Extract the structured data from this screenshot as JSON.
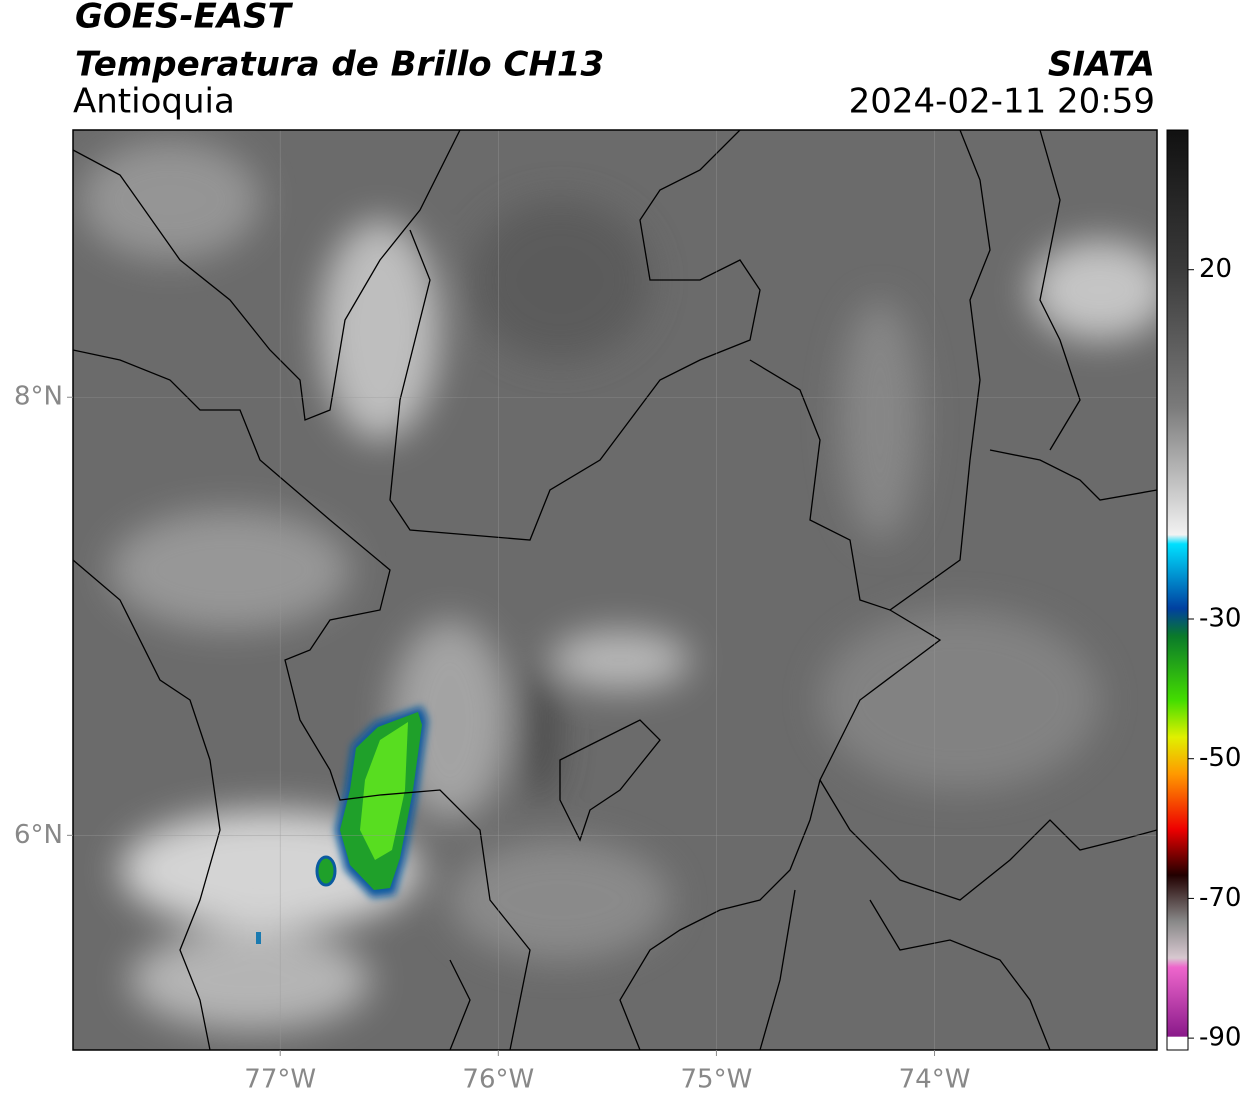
{
  "header": {
    "title": "GOES-EAST",
    "subtitle": "Temperatura de Brillo CH13",
    "region": "Antioquia",
    "source": "SIATA",
    "datetime": "2024-02-11 20:59"
  },
  "map": {
    "xlim": [
      -77.95,
      -72.98
    ],
    "ylim": [
      5.02,
      9.22
    ],
    "xticks": [
      {
        "value": -77,
        "label": "77°W"
      },
      {
        "value": -76,
        "label": "76°W"
      },
      {
        "value": -75,
        "label": "75°W"
      },
      {
        "value": -74,
        "label": "74°W"
      }
    ],
    "yticks": [
      {
        "value": 8,
        "label": "8°N"
      },
      {
        "value": 6,
        "label": "6°N"
      }
    ]
  },
  "colorbar": {
    "lim": [
      -91.7,
      40
    ],
    "ticks": [
      20,
      -30,
      -50,
      -70,
      -90
    ]
  }
}
